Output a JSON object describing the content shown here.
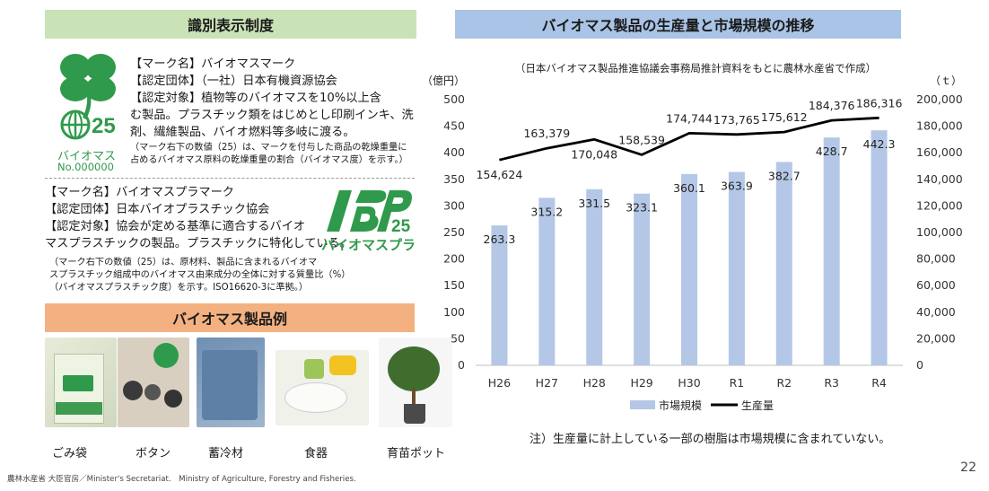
{
  "left": {
    "ident_header": "識別表示制度",
    "mark1": {
      "logo_word": "バイオマス",
      "logo_number": "No.000000",
      "logo_digits": "25",
      "lines": [
        "【マーク名】バイオマスマーク",
        "【認定団体】（一社）日本有機資源協会",
        "【認定対象】植物等のバイオマスを10%以上含",
        "む製品。プラスチック類をはじめとし印刷インキ、洗",
        "剤、繊維製品、バイオ燃料等多岐に渡る。"
      ],
      "notes": [
        "（マーク右下の数値（25）は、マークを付与した商品の乾燥重量に",
        "占めるバイオマス原料の乾燥重量の割合（バイオマス度）を示す。）"
      ]
    },
    "mark2": {
      "logo_text": "バイオマスプラ",
      "logo_digits": "25",
      "lines": [
        "【マーク名】バイオマスプラマーク",
        "【認定団体】日本バイオプラスチック協会",
        "【認定対象】協会が定める基準に適合するバイオ",
        "マスプラスチックの製品。プラスチックに特化している。"
      ],
      "notes": [
        "（マーク右下の数値（25）は、原材料、製品に含まれるバイオマ",
        "スプラスチック組成中のバイオマス由来成分の全体に対する質量比（%）",
        "（バイオマスプラスチック度）を示す。ISO16620-3に準拠。）"
      ]
    },
    "examples_header": "バイオマス製品例",
    "examples": [
      "ごみ袋",
      "ボタン",
      "蓄冷材",
      "食器",
      "育苗ポット"
    ]
  },
  "right": {
    "chart_header": "バイオマス製品の生産量と市場規模の推移",
    "note": "注）生産量に計上している一部の樹脂は市場規模に含まれていない。"
  },
  "chart_data": {
    "type": "bar",
    "subtitle": "（日本バイオマス製品推進協議会事務局推計資料をもとに農林水産省で作成）",
    "categories": [
      "H26",
      "H27",
      "H28",
      "H29",
      "H30",
      "R1",
      "R2",
      "R3",
      "R4"
    ],
    "y_left_unit": "（億円）",
    "y_right_unit": "（ｔ）",
    "ylim_left": [
      0,
      500
    ],
    "ylim_right": [
      0,
      200000
    ],
    "left_ticks": [
      "0",
      "50",
      "100",
      "150",
      "200",
      "250",
      "300",
      "350",
      "400",
      "450",
      "500"
    ],
    "right_ticks": [
      "0",
      "20,000",
      "40,000",
      "60,000",
      "80,000",
      "100,000",
      "120,000",
      "140,000",
      "160,000",
      "180,000",
      "200,000"
    ],
    "series": [
      {
        "name": "市場規模",
        "type": "bar",
        "axis": "left",
        "color": "#b4c7e7",
        "values": [
          263.3,
          315.2,
          331.5,
          323.1,
          360.1,
          363.9,
          382.7,
          428.7,
          442.3
        ],
        "labels": [
          "263.3",
          "315.2",
          "331.5",
          "323.1",
          "360.1",
          "363.9",
          "382.7",
          "428.7",
          "442.3"
        ]
      },
      {
        "name": "生産量",
        "type": "line",
        "axis": "right",
        "color": "#000000",
        "values": [
          154624,
          163379,
          170048,
          158539,
          174744,
          173765,
          175612,
          184376,
          186316
        ],
        "labels": [
          "154,624",
          "163,379",
          "170,048",
          "158,539",
          "174,744",
          "173,765",
          "175,612",
          "184,376",
          "186,316"
        ]
      }
    ],
    "legend": "bottom",
    "grid": false
  },
  "footer": {
    "org": "農林水産省 大臣官房／Minister's Secretariat.　Ministry of Agriculture, Forestry and Fisheries.",
    "page": "22"
  }
}
